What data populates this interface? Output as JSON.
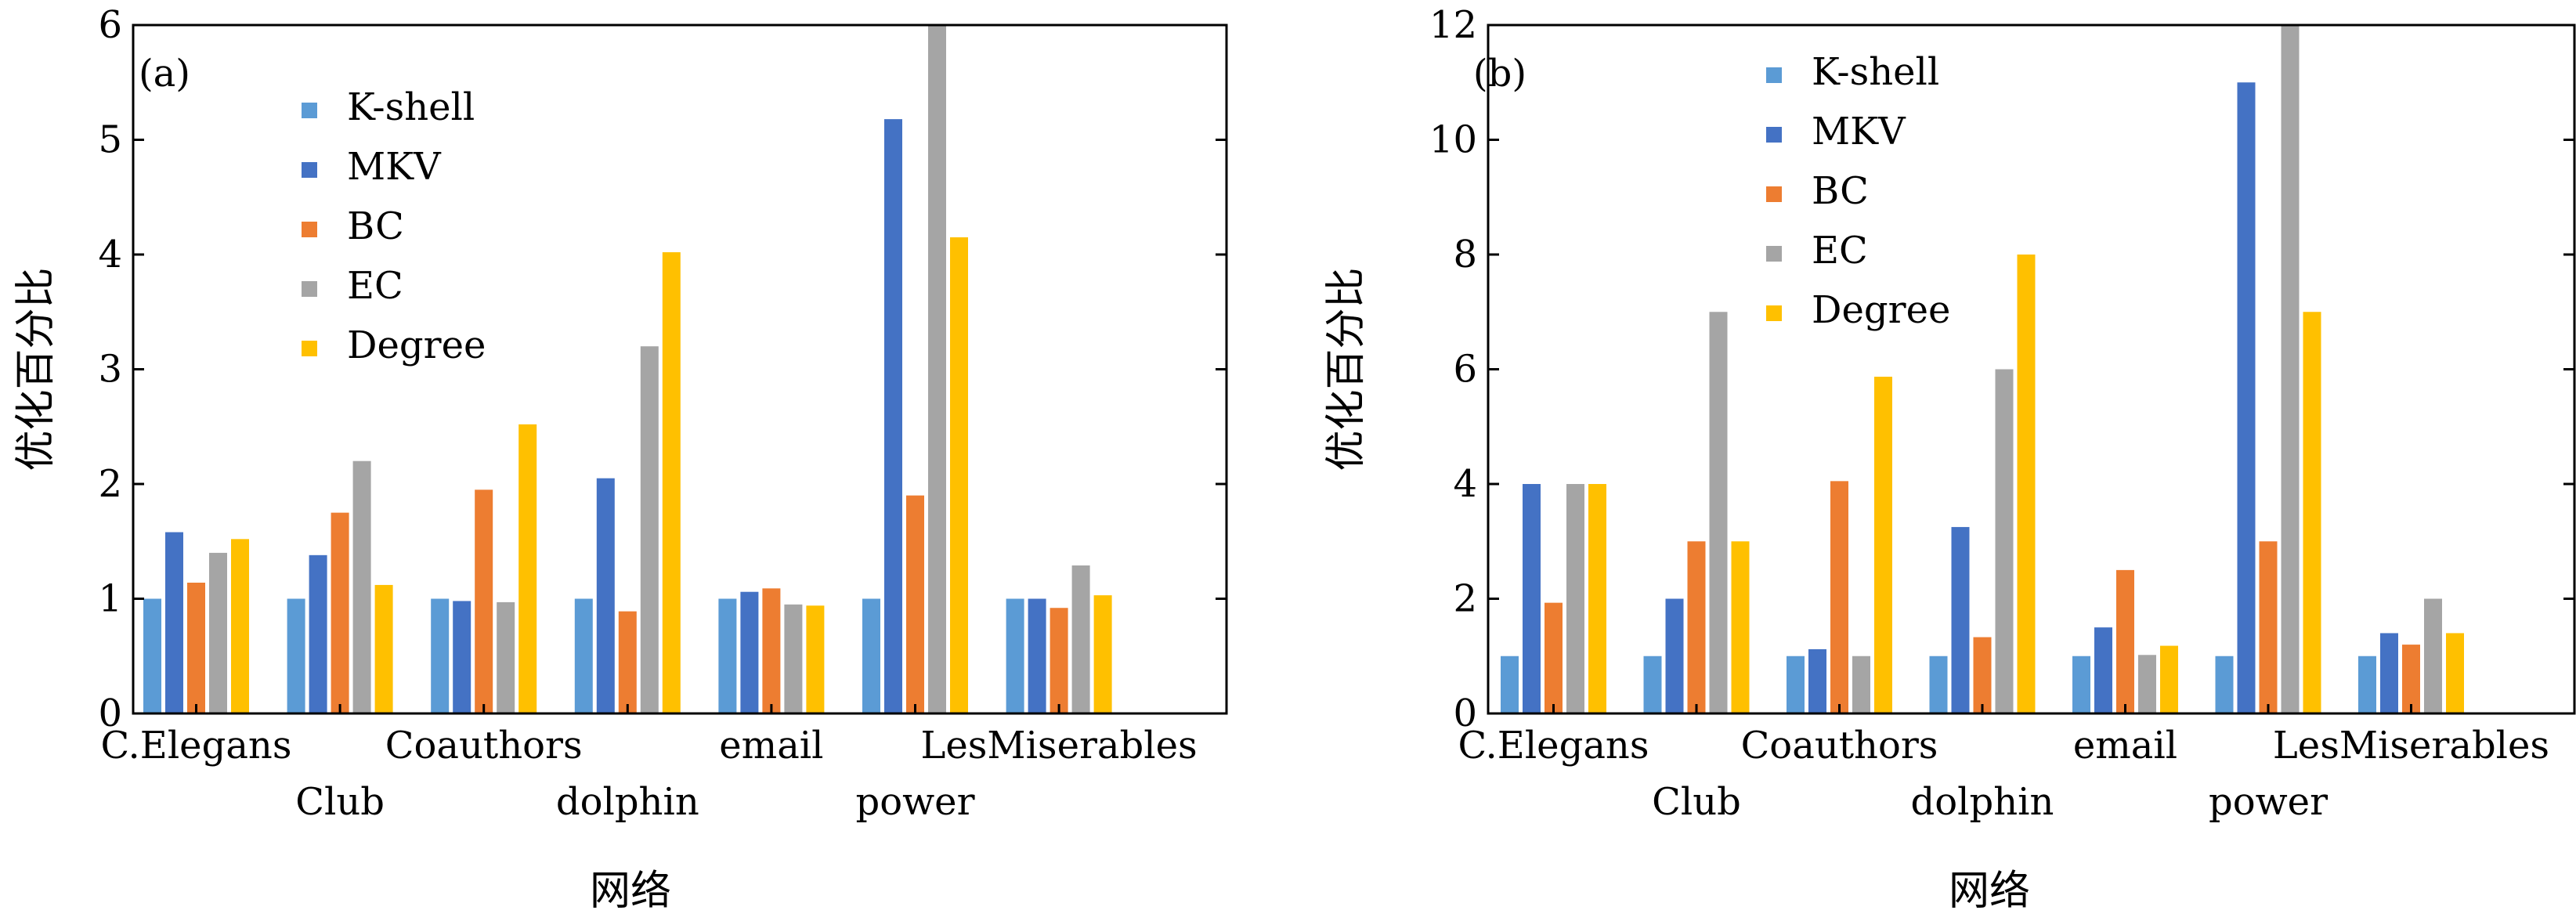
{
  "colors": {
    "K-shell": "#5B9BD5",
    "MKV": "#4472C4",
    "BC": "#ED7D31",
    "EC": "#A5A5A5",
    "Degree": "#FFC000"
  },
  "chart_data": [
    {
      "type": "bar",
      "panel_label": "(a)",
      "xlabel": "网络",
      "ylabel": "优化百分比",
      "ylim": [
        0,
        6
      ],
      "yticks": [
        "0",
        "1",
        "2",
        "3",
        "4",
        "5",
        "6"
      ],
      "categories": [
        "C.Elegans",
        "Club",
        "Coauthors",
        "dolphin",
        "email",
        "power",
        "LesMiserables"
      ],
      "legend": [
        "K-shell",
        "MKV",
        "BC",
        "EC",
        "Degree"
      ],
      "series": [
        {
          "name": "K-shell",
          "values": [
            1.0,
            1.0,
            1.0,
            1.0,
            1.0,
            1.0,
            1.0
          ]
        },
        {
          "name": "MKV",
          "values": [
            1.58,
            1.38,
            0.98,
            2.05,
            1.06,
            5.18,
            1.0
          ]
        },
        {
          "name": "BC",
          "values": [
            1.14,
            1.75,
            1.95,
            0.89,
            1.09,
            1.9,
            0.92
          ]
        },
        {
          "name": "EC",
          "values": [
            1.4,
            2.2,
            0.97,
            3.2,
            0.95,
            6.0,
            1.29
          ]
        },
        {
          "name": "Degree",
          "values": [
            1.52,
            1.12,
            2.52,
            4.02,
            0.94,
            4.15,
            1.03
          ]
        }
      ]
    },
    {
      "type": "bar",
      "panel_label": "(b)",
      "xlabel": "网络",
      "ylabel": "优化百分比",
      "ylim": [
        0,
        12
      ],
      "yticks": [
        "0",
        "2",
        "4",
        "6",
        "8",
        "10",
        "12"
      ],
      "categories": [
        "C.Elegans",
        "Club",
        "Coauthors",
        "dolphin",
        "email",
        "power",
        "LesMiserables"
      ],
      "legend": [
        "K-shell",
        "MKV",
        "BC",
        "EC",
        "Degree"
      ],
      "series": [
        {
          "name": "K-shell",
          "values": [
            1.0,
            1.0,
            1.0,
            1.0,
            1.0,
            1.0,
            1.0
          ]
        },
        {
          "name": "MKV",
          "values": [
            4.0,
            2.0,
            1.12,
            3.25,
            1.5,
            11.0,
            1.4
          ]
        },
        {
          "name": "BC",
          "values": [
            1.93,
            3.0,
            4.05,
            1.33,
            2.5,
            3.0,
            1.2
          ]
        },
        {
          "name": "EC",
          "values": [
            4.0,
            7.0,
            1.0,
            6.0,
            1.02,
            12.0,
            2.0
          ]
        },
        {
          "name": "Degree",
          "values": [
            4.0,
            3.0,
            5.87,
            8.0,
            1.18,
            7.0,
            1.4
          ]
        }
      ]
    }
  ]
}
